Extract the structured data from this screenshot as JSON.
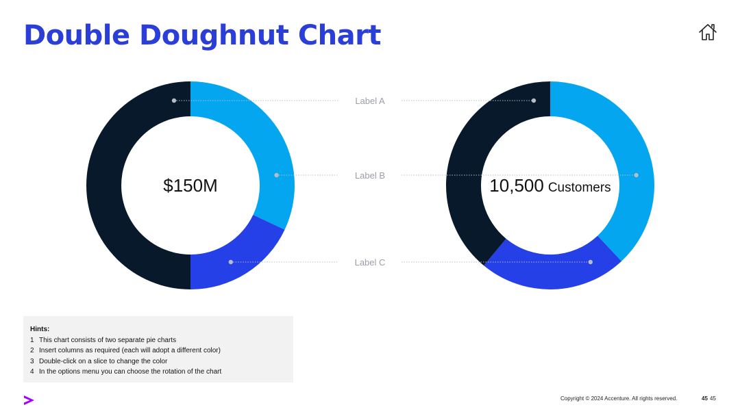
{
  "slide": {
    "title": "Double Doughnut Chart",
    "title_color": "#2b3fd8",
    "footer_text": "Copyright © 2024 Accenture. All rights reserved.",
    "page_number_bold": "45",
    "page_number": "45",
    "home_icon": "home-icon",
    "logo_icon": "accenture-chevron-icon",
    "logo_color": "#a100ff"
  },
  "hints": {
    "title": "Hints:",
    "items": [
      {
        "num": "1",
        "text": "This chart consists of two separate pie charts"
      },
      {
        "num": "2",
        "text": "Insert columns as required (each will adopt a different color)"
      },
      {
        "num": "3",
        "text": "Double-click on a slice to change the color"
      },
      {
        "num": "4",
        "text": "In the options menu you can choose the rotation of the chart"
      }
    ]
  },
  "chart_data": [
    {
      "type": "doughnut",
      "center_value": "$150M",
      "center_unit": "",
      "labels": [
        "Label A",
        "Label B",
        "Label C"
      ],
      "values": [
        50,
        32,
        18
      ],
      "colors": [
        "#07192a",
        "#05a6f0",
        "#2440e6"
      ]
    },
    {
      "type": "doughnut",
      "center_value": "10,500",
      "center_unit": "Customers",
      "labels": [
        "Label A",
        "Label B",
        "Label C"
      ],
      "values": [
        39,
        38,
        23
      ],
      "colors": [
        "#07192a",
        "#05a6f0",
        "#2440e6"
      ]
    }
  ]
}
